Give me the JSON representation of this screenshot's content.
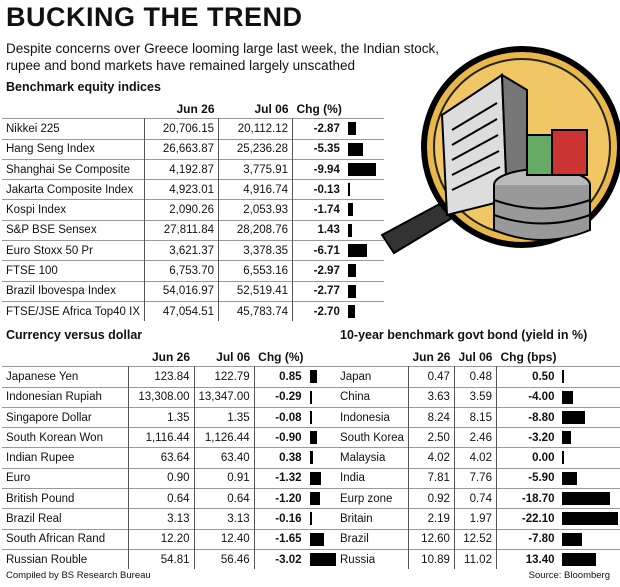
{
  "title": "BUCKING THE TREND",
  "subtitle": "Despite concerns over Greece looming large last week, the Indian stock, rupee and bond markets have remained largely unscathed",
  "equity": {
    "heading": "Benchmark equity indices",
    "columns": [
      "",
      "Jun 26",
      "Jul 06",
      "Chg (%)"
    ],
    "rows": [
      {
        "name": "Nikkei 225",
        "jun26": "20,706.15",
        "jul06": "20,112.12",
        "chg": "-2.87",
        "value": -2.87
      },
      {
        "name": "Hang Seng Index",
        "jun26": "26,663.87",
        "jul06": "25,236.28",
        "chg": "-5.35",
        "value": -5.35
      },
      {
        "name": "Shanghai Se Composite",
        "jun26": "4,192.87",
        "jul06": "3,775.91",
        "chg": "-9.94",
        "value": -9.94
      },
      {
        "name": "Jakarta Composite Index",
        "jun26": "4,923.01",
        "jul06": "4,916.74",
        "chg": "-0.13",
        "value": -0.13
      },
      {
        "name": "Kospi Index",
        "jun26": "2,090.26",
        "jul06": "2,053.93",
        "chg": "-1.74",
        "value": -1.74
      },
      {
        "name": "S&P BSE Sensex",
        "jun26": "27,811.84",
        "jul06": "28,208.76",
        "chg": "1.43",
        "value": 1.43
      },
      {
        "name": "Euro Stoxx 50 Pr",
        "jun26": "3,621.37",
        "jul06": "3,378.35",
        "chg": "-6.71",
        "value": -6.71
      },
      {
        "name": "FTSE 100",
        "jun26": "6,753.70",
        "jul06": "6,553.16",
        "chg": "-2.97",
        "value": -2.97
      },
      {
        "name": "Brazil Ibovespa Index",
        "jun26": "54,016.97",
        "jul06": "52,519.41",
        "chg": "-2.77",
        "value": -2.77
      },
      {
        "name": "FTSE/JSE Africa Top40 IX",
        "jun26": "47,054.51",
        "jul06": "45,783.74",
        "chg": "-2.70",
        "value": -2.7
      }
    ]
  },
  "currency": {
    "heading": "Currency versus dollar",
    "columns": [
      "",
      "Jun 26",
      "Jul 06",
      "Chg (%)"
    ],
    "rows": [
      {
        "name": "Japanese Yen",
        "jun26": "123.84",
        "jul06": "122.79",
        "chg": "0.85",
        "value": 0.85
      },
      {
        "name": "Indonesian Rupiah",
        "jun26": "13,308.00",
        "jul06": "13,347.00",
        "chg": "-0.29",
        "value": -0.29
      },
      {
        "name": "Singapore Dollar",
        "jun26": "1.35",
        "jul06": "1.35",
        "chg": "-0.08",
        "value": -0.08
      },
      {
        "name": "South Korean Won",
        "jun26": "1,116.44",
        "jul06": "1,126.44",
        "chg": "-0.90",
        "value": -0.9
      },
      {
        "name": "Indian Rupee",
        "jun26": "63.64",
        "jul06": "63.40",
        "chg": "0.38",
        "value": 0.38
      },
      {
        "name": "Euro",
        "jun26": "0.90",
        "jul06": "0.91",
        "chg": "-1.32",
        "value": -1.32
      },
      {
        "name": "British Pound",
        "jun26": "0.64",
        "jul06": "0.64",
        "chg": "-1.20",
        "value": -1.2
      },
      {
        "name": "Brazil Real",
        "jun26": "3.13",
        "jul06": "3.13",
        "chg": "-0.16",
        "value": -0.16
      },
      {
        "name": "South African Rand",
        "jun26": "12.20",
        "jul06": "12.40",
        "chg": "-1.65",
        "value": -1.65
      },
      {
        "name": "Russian Rouble",
        "jun26": "54.81",
        "jul06": "56.46",
        "chg": "-3.02",
        "value": -3.02
      }
    ]
  },
  "bond": {
    "heading": "10-year benchmark govt bond (yield in %)",
    "columns": [
      "",
      "Jun 26",
      "Jul 06",
      "Chg (bps)"
    ],
    "rows": [
      {
        "name": "Japan",
        "jun26": "0.47",
        "jul06": "0.48",
        "chg": "0.50",
        "value": 0.5
      },
      {
        "name": "China",
        "jun26": "3.63",
        "jul06": "3.59",
        "chg": "-4.00",
        "value": -4.0
      },
      {
        "name": "Indonesia",
        "jun26": "8.24",
        "jul06": "8.15",
        "chg": "-8.80",
        "value": -8.8
      },
      {
        "name": "South Korea",
        "jun26": "2.50",
        "jul06": "2.46",
        "chg": "-3.20",
        "value": -3.2
      },
      {
        "name": "Malaysia",
        "jun26": "4.02",
        "jul06": "4.02",
        "chg": "0.00",
        "value": 0.0
      },
      {
        "name": "India",
        "jun26": "7.81",
        "jul06": "7.76",
        "chg": "-5.90",
        "value": -5.9
      },
      {
        "name": "Eurp zone",
        "jun26": "0.92",
        "jul06": "0.74",
        "chg": "-18.70",
        "value": -18.7
      },
      {
        "name": "Britain",
        "jun26": "2.19",
        "jul06": "1.97",
        "chg": "-22.10",
        "value": -22.1
      },
      {
        "name": "Brazil",
        "jun26": "12.60",
        "jul06": "12.52",
        "chg": "-7.80",
        "value": -7.8
      },
      {
        "name": "Russia",
        "jun26": "10.89",
        "jul06": "11.02",
        "chg": "13.40",
        "value": 13.4
      }
    ]
  },
  "footer": {
    "left": "Compiled by BS Research Bureau",
    "right": "Source: Bloomberg"
  }
}
